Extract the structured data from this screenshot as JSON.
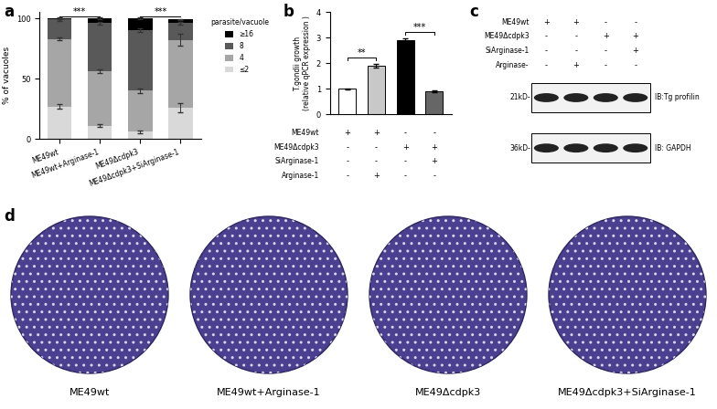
{
  "chart_data": [
    {
      "type": "bar",
      "title": "a",
      "stacked": true,
      "categories": [
        "ME49wt",
        "ME49wt+Arginase-1",
        "ME49Δcdpk3",
        "ME49Δcdpk3+SiArginase-1"
      ],
      "y_label": "% of vacuoles",
      "series": [
        {
          "name": "≤2",
          "color": "#d9d9d9",
          "values": [
            27,
            11,
            6,
            26
          ],
          "errors": [
            2,
            1,
            1,
            4
          ]
        },
        {
          "name": "4",
          "color": "#a6a6a6",
          "values": [
            56,
            45,
            34,
            56
          ],
          "errors": [
            1,
            1.5,
            2,
            5
          ]
        },
        {
          "name": "8",
          "color": "#595959",
          "values": [
            16,
            40,
            50,
            14
          ],
          "errors": [
            1,
            1,
            1.5,
            1
          ]
        },
        {
          "name": "≥16",
          "color": "#000000",
          "values": [
            1,
            4,
            10,
            3
          ],
          "errors": [
            1,
            0.5,
            1,
            0.5
          ]
        }
      ],
      "legend": "upper left",
      "legend_title": "parasite/vacuole",
      "ylim": [
        0,
        105
      ],
      "yticks": [
        0,
        50,
        100
      ],
      "annotations": [
        {
          "text": "***",
          "between": [
            0,
            1
          ]
        },
        {
          "text": "***",
          "between": [
            2,
            3
          ]
        }
      ]
    },
    {
      "type": "bar",
      "title": "b",
      "categories": [
        null,
        null,
        null,
        null
      ],
      "y_label": "T.gondii growth\n(relative qPCR expression )",
      "values": [
        1.0,
        1.9,
        2.9,
        0.92
      ],
      "errors": [
        0.02,
        0.08,
        0.08,
        0.03
      ],
      "colors": [
        "#ffffff",
        "#c8c8c8",
        "#000000",
        "#666666"
      ],
      "ylim": [
        0,
        4
      ],
      "yticks": [
        0,
        1,
        2,
        3,
        4
      ],
      "conditions": [
        {
          "label": "ME49wt",
          "marks": [
            "+",
            "+",
            "-",
            "-"
          ]
        },
        {
          "label": "ME49Δcdpk3",
          "marks": [
            "-",
            "-",
            "+",
            "+"
          ]
        },
        {
          "label": "SiArginase-1",
          "marks": [
            "-",
            "-",
            "-",
            "+"
          ]
        },
        {
          "label": "Arginase-1",
          "marks": [
            "-",
            "+",
            "-",
            "-"
          ]
        }
      ],
      "annotations": [
        {
          "text": "**",
          "between": [
            0,
            1
          ]
        },
        {
          "text": "***",
          "between": [
            2,
            3
          ]
        }
      ]
    }
  ],
  "blot": {
    "title": "c",
    "conditions": [
      {
        "label": "ME49wt",
        "marks": [
          "+",
          "+",
          "-",
          "-"
        ]
      },
      {
        "label": "ME49Δcdpk3",
        "marks": [
          "-",
          "-",
          "+",
          "+"
        ]
      },
      {
        "label": "SiArginase-1",
        "marks": [
          "-",
          "-",
          "-",
          "+"
        ]
      },
      {
        "label": "Arginase-",
        "marks": [
          "-",
          "+",
          "-",
          "-"
        ]
      }
    ],
    "blots": [
      {
        "label": "IB:Tg profilin",
        "size_label": "21kD-"
      },
      {
        "label": "IB: GAPDH",
        "size_label": "36kD-"
      }
    ]
  },
  "plaques": {
    "title": "d",
    "labels": [
      "ME49wt",
      "ME49wt+Arginase-1",
      "ME49Δcdpk3",
      "ME49Δcdpk3+SiArginase-1"
    ]
  }
}
